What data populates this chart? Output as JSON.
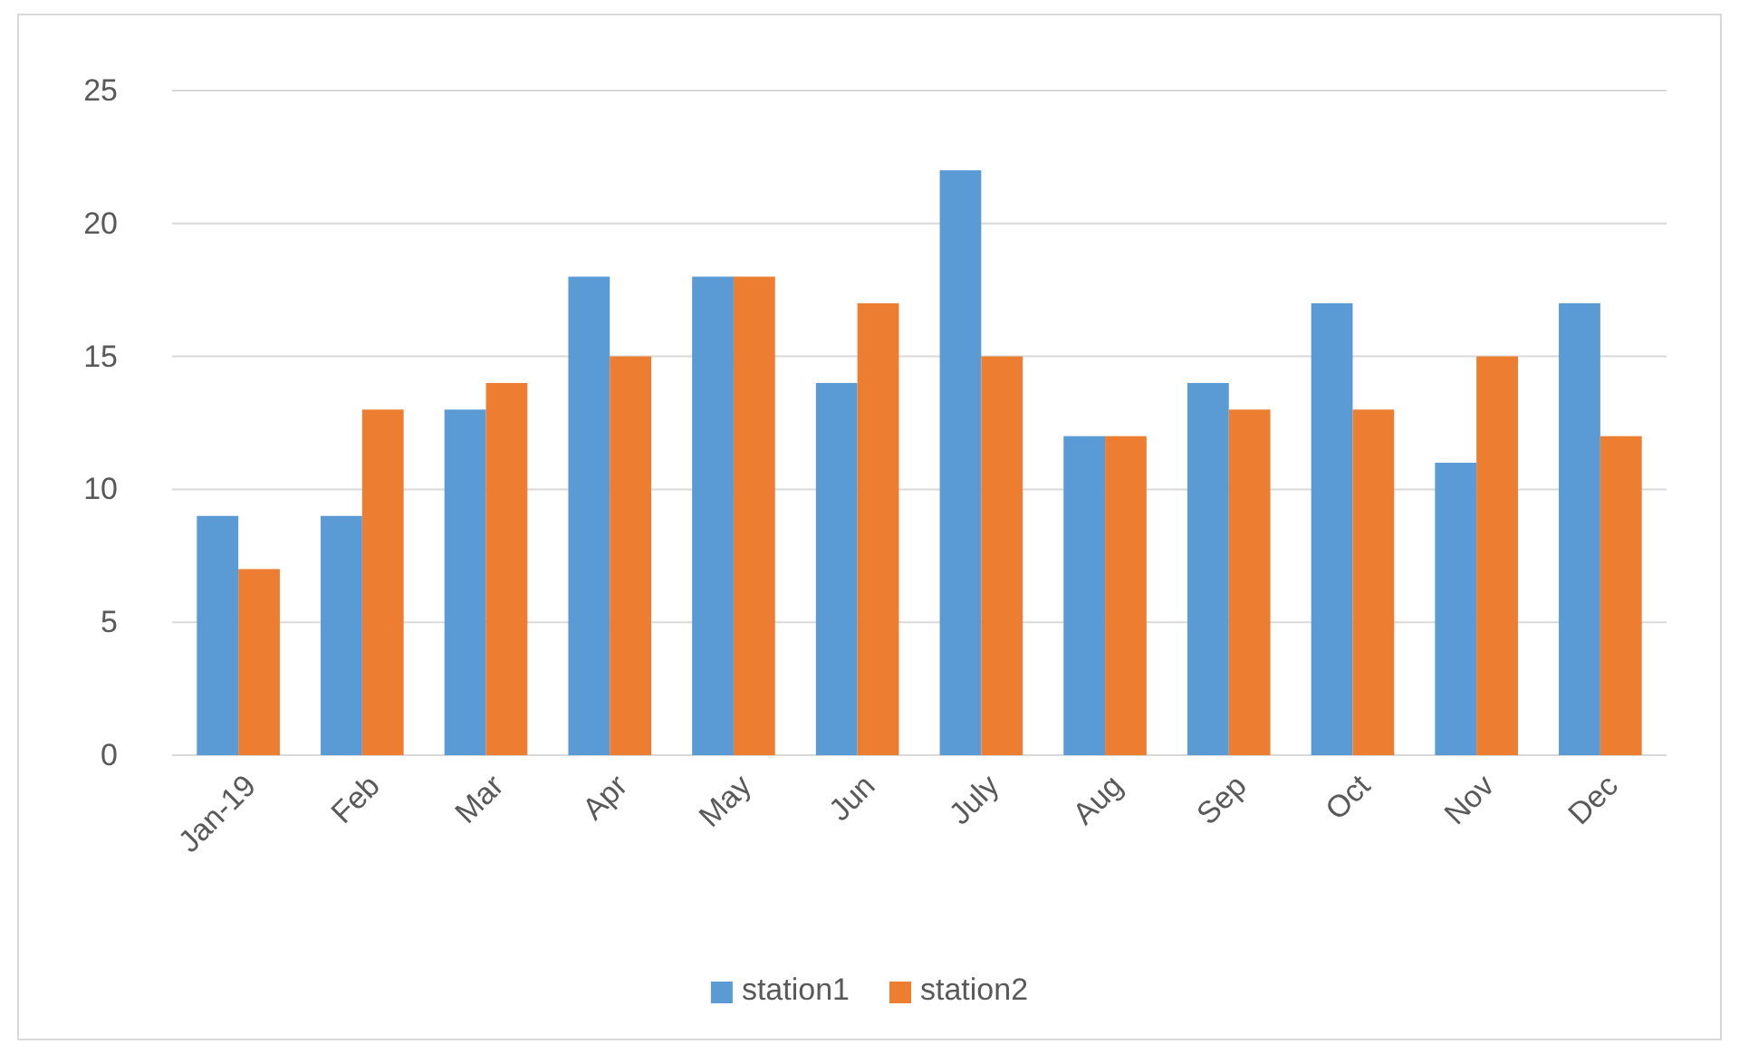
{
  "chart_data": {
    "type": "bar",
    "categories": [
      "Jan-19",
      "Feb",
      "Mar",
      "Apr",
      "May",
      "Jun",
      "July",
      "Aug",
      "Sep",
      "Oct",
      "Nov",
      "Dec"
    ],
    "series": [
      {
        "name": "station1",
        "color": "#5b9bd5",
        "values": [
          9,
          9,
          13,
          18,
          18,
          14,
          22,
          12,
          14,
          17,
          11,
          17
        ]
      },
      {
        "name": "station2",
        "color": "#ed7d31",
        "values": [
          7,
          13,
          14,
          15,
          18,
          17,
          15,
          12,
          13,
          13,
          15,
          12
        ]
      }
    ],
    "ylim": [
      0,
      25
    ],
    "yticks": [
      0,
      5,
      10,
      15,
      20,
      25
    ],
    "grid": "y",
    "legend": "bottom"
  }
}
